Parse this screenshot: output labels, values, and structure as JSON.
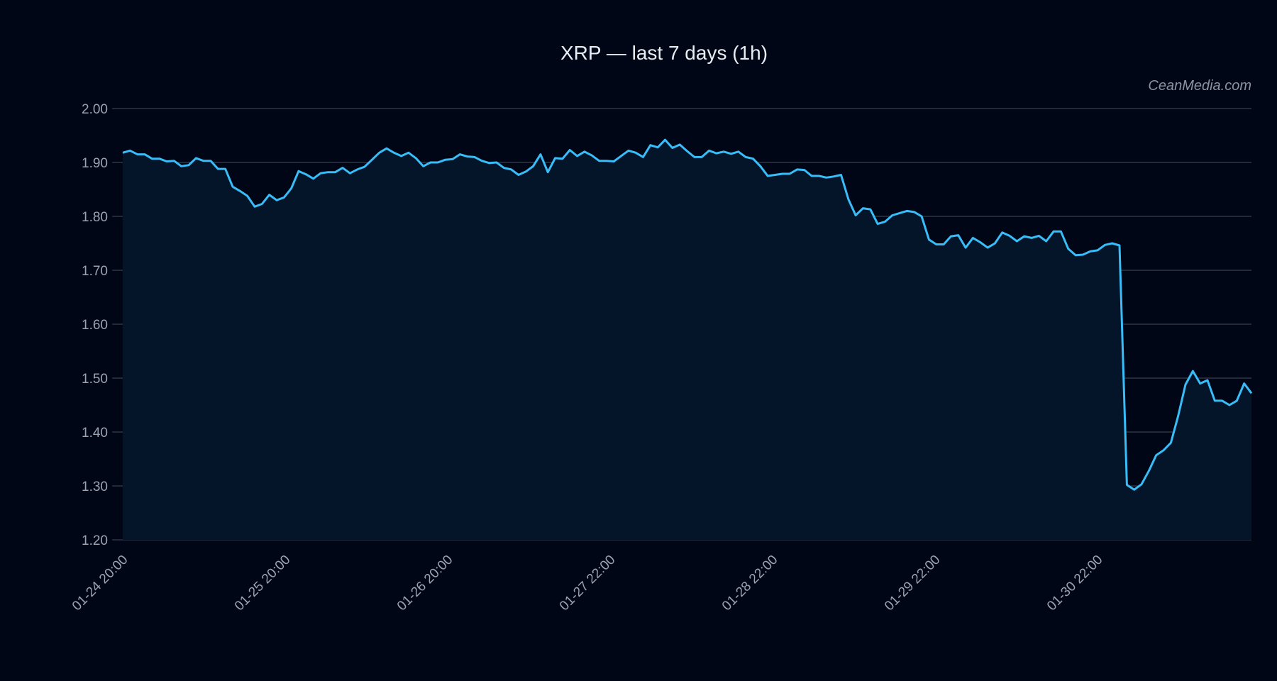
{
  "chart_data": {
    "type": "area",
    "title": "XRP — last 7 days (1h)",
    "watermark": "CeanMedia.com",
    "xlabel": "",
    "ylabel": "",
    "ylim": [
      1.2,
      2.0
    ],
    "yticks": [
      "1.20",
      "1.30",
      "1.40",
      "1.50",
      "1.60",
      "1.70",
      "1.80",
      "1.90",
      "2.00"
    ],
    "xticks": [
      "01-24 20:00",
      "01-25 20:00",
      "01-26 20:00",
      "01-27 22:00",
      "01-28 22:00",
      "01-29 22:00",
      "01-30 22:00"
    ],
    "grid": true,
    "colors": {
      "line": "#38bdf8",
      "fill": "#04152a",
      "grid": "#2e3646",
      "background": "#000615"
    },
    "values": [
      1.918,
      1.922,
      1.915,
      1.915,
      1.907,
      1.907,
      1.902,
      1.903,
      1.893,
      1.895,
      1.908,
      1.903,
      1.903,
      1.888,
      1.888,
      1.855,
      1.847,
      1.838,
      1.818,
      1.823,
      1.84,
      1.83,
      1.835,
      1.852,
      1.884,
      1.878,
      1.87,
      1.88,
      1.882,
      1.882,
      1.89,
      1.88,
      1.887,
      1.892,
      1.905,
      1.918,
      1.926,
      1.918,
      1.912,
      1.918,
      1.908,
      1.893,
      1.9,
      1.9,
      1.905,
      1.906,
      1.915,
      1.911,
      1.91,
      1.903,
      1.899,
      1.9,
      1.89,
      1.887,
      1.877,
      1.883,
      1.893,
      1.915,
      1.882,
      1.908,
      1.907,
      1.923,
      1.912,
      1.92,
      1.913,
      1.903,
      1.903,
      1.902,
      1.912,
      1.922,
      1.918,
      1.91,
      1.932,
      1.928,
      1.942,
      1.927,
      1.933,
      1.921,
      1.91,
      1.91,
      1.922,
      1.917,
      1.92,
      1.916,
      1.92,
      1.91,
      1.907,
      1.893,
      1.875,
      1.877,
      1.879,
      1.879,
      1.887,
      1.886,
      1.875,
      1.875,
      1.872,
      1.874,
      1.877,
      1.832,
      1.802,
      1.815,
      1.813,
      1.786,
      1.79,
      1.802,
      1.806,
      1.81,
      1.808,
      1.8,
      1.757,
      1.748,
      1.748,
      1.763,
      1.765,
      1.742,
      1.76,
      1.752,
      1.742,
      1.75,
      1.77,
      1.764,
      1.754,
      1.763,
      1.76,
      1.764,
      1.754,
      1.772,
      1.772,
      1.74,
      1.728,
      1.729,
      1.735,
      1.737,
      1.747,
      1.75,
      1.746,
      1.302,
      1.293,
      1.303,
      1.328,
      1.357,
      1.366,
      1.38,
      1.43,
      1.488,
      1.513,
      1.49,
      1.496,
      1.458,
      1.458,
      1.45,
      1.458,
      1.49,
      1.472
    ]
  }
}
